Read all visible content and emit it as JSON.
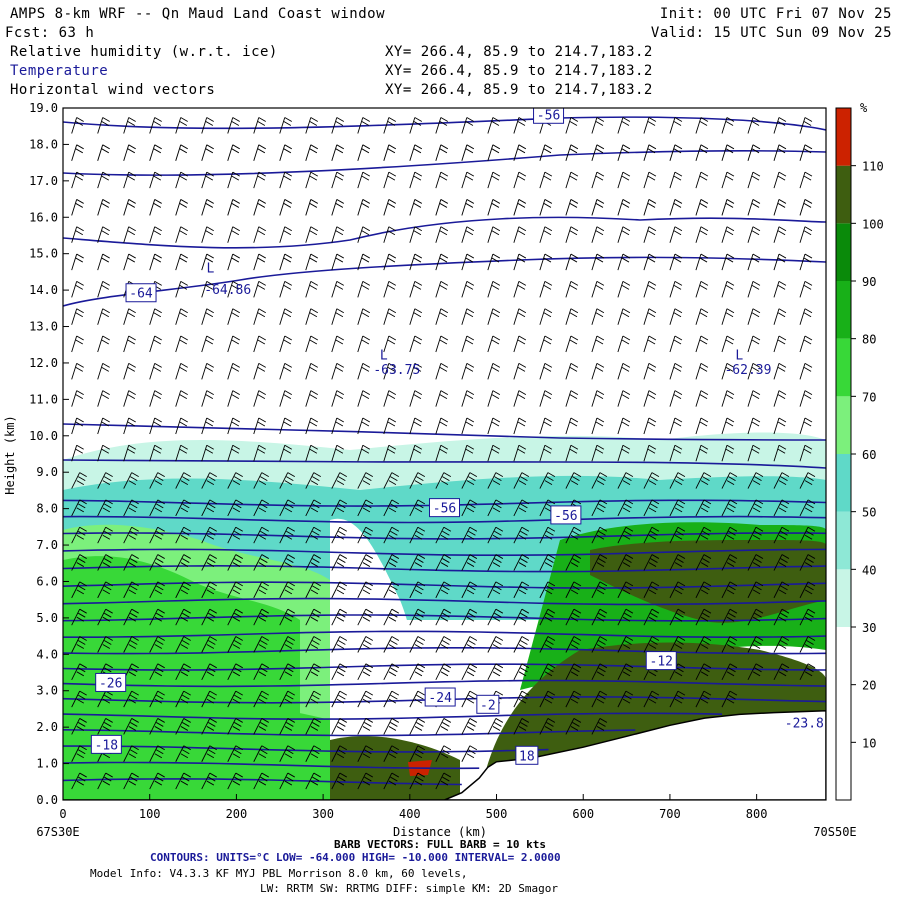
{
  "header": {
    "title": "AMPS 8-km WRF -- Qn Maud Land Coast window",
    "init": "Init: 00 UTC Fri 07 Nov 25",
    "fcst": "Fcst:   63 h",
    "valid": "Valid: 15 UTC Sun 09 Nov 25",
    "fields": [
      {
        "name": "Relative humidity (w.r.t. ice)",
        "xy": "XY= 266.4, 85.9 to 214.7,183.2"
      },
      {
        "name": "Temperature",
        "xy": "XY= 266.4, 85.9 to 214.7,183.2"
      },
      {
        "name": "Horizontal wind vectors",
        "xy": "XY= 266.4, 85.9 to 214.7,183.2"
      }
    ]
  },
  "colors": {
    "temperature": "#1a1a99",
    "text": "#000000",
    "rh_scale": [
      "#ffffff",
      "#ffffff",
      "#ffffff",
      "#c8f5e6",
      "#8ee8d6",
      "#5fd9c8",
      "#40e0d0",
      "#7cf07c",
      "#38d838",
      "#18b018",
      "#0a8a0a",
      "#086a18",
      "#3e5e10",
      "#cc2200"
    ]
  },
  "chart_data": {
    "type": "heatmap",
    "xlabel": "Distance (km)",
    "ylabel": "Height (km)",
    "xlim": [
      0,
      880
    ],
    "ylim": [
      0,
      19
    ],
    "x_ticks": [
      0,
      100,
      200,
      300,
      400,
      500,
      600,
      700,
      800
    ],
    "y_ticks": [
      "0.0",
      "1.0",
      "2.0",
      "3.0",
      "4.0",
      "5.0",
      "6.0",
      "7.0",
      "8.0",
      "9.0",
      "10.0",
      "11.0",
      "12.0",
      "13.0",
      "14.0",
      "15.0",
      "16.0",
      "17.0",
      "18.0",
      "19.0"
    ],
    "left_endpoint": "67S30E",
    "right_endpoint": "70S50E",
    "colorbar": {
      "unit": "%",
      "labels": [
        "10",
        "20",
        "30",
        "40",
        "50",
        "60",
        "70",
        "80",
        "90",
        "100",
        "110"
      ],
      "bounds": [
        0,
        120
      ]
    },
    "terrain": [
      [
        0,
        0
      ],
      [
        440,
        0
      ],
      [
        460,
        0.2
      ],
      [
        480,
        0.6
      ],
      [
        490,
        0.9
      ],
      [
        500,
        1.05
      ],
      [
        540,
        1.15
      ],
      [
        600,
        1.45
      ],
      [
        650,
        1.75
      ],
      [
        700,
        2.05
      ],
      [
        740,
        2.25
      ],
      [
        780,
        2.35
      ],
      [
        820,
        2.4
      ],
      [
        880,
        2.45
      ]
    ],
    "temperature_contour_labels": [
      {
        "text": "-56",
        "x": 560,
        "y": 18.8
      },
      {
        "text": "-64",
        "x": 90,
        "y": 13.9
      },
      {
        "text": "L",
        "x": 170,
        "y": 14.6
      },
      {
        "text": "-64.86",
        "x": 190,
        "y": 14.0
      },
      {
        "text": "L",
        "x": 370,
        "y": 12.2
      },
      {
        "text": "-63.75",
        "x": 385,
        "y": 11.8
      },
      {
        "text": "L",
        "x": 780,
        "y": 12.2
      },
      {
        "text": "-62.39",
        "x": 790,
        "y": 11.8
      },
      {
        "text": "-56",
        "x": 440,
        "y": 8.0
      },
      {
        "text": "-56",
        "x": 580,
        "y": 7.8
      },
      {
        "text": "-26",
        "x": 55,
        "y": 3.2
      },
      {
        "text": "-24",
        "x": 435,
        "y": 2.8
      },
      {
        "text": "-2",
        "x": 490,
        "y": 2.6
      },
      {
        "text": "-12",
        "x": 690,
        "y": 3.8
      },
      {
        "text": "-18",
        "x": 50,
        "y": 1.5
      },
      {
        "text": "18",
        "x": 535,
        "y": 1.2
      },
      {
        "text": "-23.8",
        "x": 855,
        "y": 2.1
      }
    ],
    "footer": {
      "barb": "BARB VECTORS:  FULL BARB = 10 kts",
      "contours": "CONTOURS:  UNITS=°C  LOW= -64.000       HIGH= -10.000        INTERVAL=   2.0000",
      "model1": "Model Info: V4.3.3   KF      MYJ PBL  Morrison           8.0 km,  60 levels,",
      "model2": "LW: RRTM SW: RRTMG   DIFF: simple KM: 2D Smagor"
    }
  }
}
